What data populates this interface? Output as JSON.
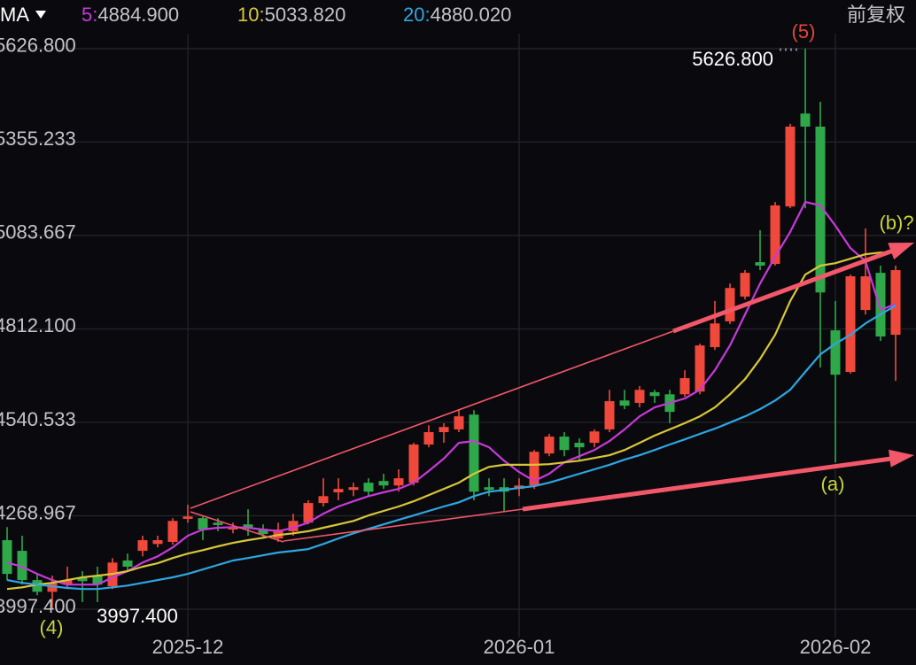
{
  "chart_data": {
    "type": "candlestick",
    "indicator": "MA",
    "adjust": "前复权",
    "categories": [
      null,
      null,
      null,
      null,
      null,
      null,
      null,
      null,
      null,
      null,
      null,
      null,
      "2025-12",
      null,
      null,
      null,
      null,
      null,
      null,
      null,
      null,
      null,
      null,
      null,
      null,
      null,
      null,
      null,
      null,
      null,
      null,
      null,
      null,
      null,
      "2026-01",
      null,
      null,
      null,
      null,
      null,
      null,
      null,
      null,
      null,
      null,
      null,
      null,
      null,
      null,
      null,
      null,
      null,
      null,
      null,
      null,
      "2026-02",
      null,
      null,
      null,
      null
    ],
    "open": [
      4198,
      4167,
      4082,
      4048,
      4069,
      4090,
      4095,
      4064,
      4139,
      4167,
      4187,
      4193,
      4260,
      4262,
      4249,
      4229,
      4244,
      4231,
      4203,
      4224,
      4249,
      4306,
      4337,
      4344,
      4365,
      4370,
      4357,
      4365,
      4476,
      4512,
      4520,
      4563,
      4352,
      4352,
      4347,
      4357,
      4450,
      4499,
      4481,
      4481,
      4520,
      4604,
      4597,
      4628,
      4622,
      4622,
      4630,
      4759,
      4834,
      4906,
      5006,
      5001,
      5168,
      5438,
      5400,
      4808,
      4687,
      4867,
      4975,
      4795
    ],
    "high": [
      4236,
      4211,
      4100,
      4095,
      4121,
      4108,
      4121,
      4146,
      4159,
      4211,
      4211,
      4262,
      4301,
      4270,
      4262,
      4249,
      4288,
      4244,
      4249,
      4275,
      4314,
      4378,
      4378,
      4365,
      4378,
      4391,
      4404,
      4481,
      4532,
      4538,
      4579,
      4576,
      4378,
      4378,
      4378,
      4460,
      4507,
      4512,
      4494,
      4520,
      4635,
      4635,
      4646,
      4635,
      4635,
      4692,
      4769,
      4893,
      4944,
      4983,
      5099,
      5181,
      5408,
      5626.8,
      5472,
      4893,
      4970,
      5104,
      4996,
      4996
    ],
    "low": [
      4082,
      4069,
      4038,
      3997.4,
      4056,
      4018,
      4018,
      4056,
      4108,
      4151,
      4177,
      4185,
      4249,
      4198,
      4224,
      4218,
      4211,
      4203,
      4193,
      4211,
      4244,
      4296,
      4314,
      4326,
      4326,
      4347,
      4339,
      4357,
      4468,
      4481,
      4512,
      4314,
      4326,
      4280,
      4326,
      4347,
      4442,
      4442,
      4429,
      4468,
      4512,
      4579,
      4584,
      4597,
      4538,
      4615,
      4622,
      4751,
      4826,
      4898,
      4983,
      4996,
      5163,
      5163,
      4700,
      4424,
      4682,
      4854,
      4777,
      4661
    ],
    "close": [
      4100,
      4082,
      4048,
      4074,
      4082,
      4079,
      4069,
      4133,
      4121,
      4198,
      4198,
      4254,
      4267,
      4229,
      4242,
      4236,
      4231,
      4216,
      4229,
      4254,
      4306,
      4326,
      4347,
      4352,
      4339,
      4357,
      4378,
      4476,
      4512,
      4527,
      4558,
      4339,
      4344,
      4339,
      4357,
      4455,
      4499,
      4460,
      4468,
      4514,
      4602,
      4589,
      4635,
      4617,
      4571,
      4669,
      4764,
      4828,
      4931,
      4975,
      4996,
      5171,
      5400,
      5400,
      4918,
      4679,
      4965,
      4965,
      4790,
      4983
    ],
    "up_color": "#f0483a",
    "down_color": "#2fa84a",
    "series": [
      {
        "name": "5:",
        "legend_label": "4884.900",
        "color": "#c63ad8",
        "values": [
          4133,
          4121,
          4100,
          4082,
          4069,
          4069,
          4069,
          4090,
          4108,
          4133,
          4151,
          4177,
          4211,
          4229,
          4234,
          4236,
          4234,
          4229,
          4224,
          4234,
          4249,
          4275,
          4296,
          4311,
          4326,
          4337,
          4347,
          4365,
          4399,
          4435,
          4481,
          4486,
          4468,
          4429,
          4396,
          4370,
          4391,
          4424,
          4442,
          4460,
          4486,
          4520,
          4558,
          4584,
          4597,
          4610,
          4635,
          4692,
          4764,
          4854,
          4944,
          5022,
          5094,
          5181,
          5171,
          5112,
          5047,
          5009,
          4867,
          4884.9
        ]
      },
      {
        "name": "10:",
        "legend_label": "5033.820",
        "color": "#d8c63a",
        "values": [
          4056,
          4061,
          4069,
          4074,
          4082,
          4090,
          4095,
          4100,
          4108,
          4121,
          4131,
          4146,
          4159,
          4169,
          4180,
          4190,
          4198,
          4205,
          4213,
          4218,
          4224,
          4234,
          4244,
          4254,
          4270,
          4283,
          4296,
          4311,
          4329,
          4347,
          4365,
          4391,
          4411,
          4417,
          4417,
          4417,
          4419,
          4424,
          4429,
          4437,
          4445,
          4460,
          4481,
          4502,
          4520,
          4538,
          4558,
          4584,
          4622,
          4666,
          4725,
          4795,
          4893,
          4970,
          4996,
          5003,
          5016,
          5029,
          5034,
          5033.82
        ]
      },
      {
        "name": "20:",
        "legend_label": "4880.020",
        "color": "#2ea6e2",
        "values": [
          4082,
          4074,
          4069,
          4064,
          4059,
          4056,
          4056,
          4061,
          4066,
          4074,
          4082,
          4090,
          4100,
          4113,
          4126,
          4139,
          4146,
          4154,
          4162,
          4167,
          4172,
          4187,
          4203,
          4218,
          4231,
          4244,
          4257,
          4270,
          4283,
          4296,
          4308,
          4326,
          4339,
          4344,
          4350,
          4355,
          4365,
          4378,
          4391,
          4404,
          4417,
          4432,
          4445,
          4460,
          4476,
          4491,
          4507,
          4522,
          4540,
          4558,
          4579,
          4604,
          4635,
          4687,
          4738,
          4769,
          4795,
          4828,
          4854,
          4880.02
        ]
      }
    ],
    "ylim": [
      3915,
      5768
    ],
    "yticks": [
      {
        "value": 3997.4,
        "label": "3997.400"
      },
      4268.967,
      4540.533,
      {
        "value": 4812.1,
        "label": "4812.100"
      },
      5083.667,
      5355.233,
      {
        "value": 5626.8,
        "label": "5626.800"
      }
    ],
    "grid": true,
    "annotations": [
      {
        "text": "(5)",
        "color": "#e0463c"
      },
      {
        "text": "5626.800",
        "color": "#ffffff"
      },
      {
        "text": "(b)?",
        "color": "#c8d43a"
      },
      {
        "text": "(a)",
        "color": "#c8d43a"
      },
      {
        "text": "(4)",
        "color": "#c8d43a"
      },
      {
        "text": "3997.400",
        "color": "#ffffff"
      }
    ]
  }
}
